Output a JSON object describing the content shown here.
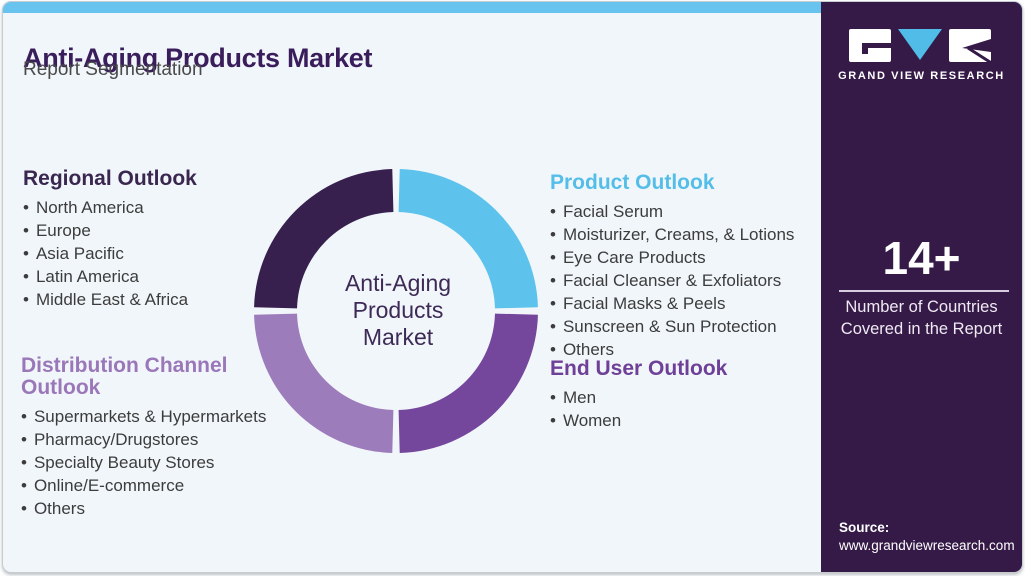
{
  "header": {
    "title": "Anti-Aging Products Market",
    "subtitle": "Report Segmentation"
  },
  "sections": [
    {
      "title": "Regional Outlook",
      "color": "#3a2750",
      "items": [
        "North America",
        "Europe",
        "Asia Pacific",
        "Latin America",
        "Middle East & Africa"
      ]
    },
    {
      "title": "Distribution Channel Outlook",
      "color": "#9a77b9",
      "items": [
        "Supermarkets & Hypermarkets",
        "Pharmacy/Drugstores",
        "Specialty Beauty Stores",
        "Online/E-commerce",
        "Others"
      ]
    },
    {
      "title": "Product Outlook",
      "color": "#54bee9",
      "items": [
        "Facial Serum",
        "Moisturizer, Creams, & Lotions",
        "Eye Care Products",
        "Facial Cleanser & Exfoliators",
        "Facial Masks & Peels",
        "Sunscreen & Sun Protection",
        "Others"
      ]
    },
    {
      "title": "End User Outlook",
      "color": "#6e4097",
      "items": [
        "Men",
        "Women"
      ]
    }
  ],
  "chart_data": {
    "type": "pie",
    "subtype": "donut",
    "title": "Anti-Aging Products Market",
    "center_label_lines": [
      "Anti-Aging",
      "Products",
      "Market"
    ],
    "segments": [
      {
        "name": "Product Outlook",
        "value": 25,
        "color": "#5ec3ec"
      },
      {
        "name": "End User Outlook",
        "value": 25,
        "color": "#74479c"
      },
      {
        "name": "Distribution Channel Outlook",
        "value": 25,
        "color": "#9d7cbb"
      },
      {
        "name": "Regional Outlook",
        "value": 25,
        "color": "#371f4e"
      }
    ],
    "start_angle_deg": 0,
    "gap_deg": 3,
    "legend": "none"
  },
  "sidebar": {
    "brand": "GRAND VIEW RESEARCH",
    "stat": {
      "value": "14+",
      "label_lines": [
        "Number of Countries",
        "Covered in the Report"
      ]
    },
    "source_label": "Source:",
    "source_url": "www.grandviewresearch.com"
  },
  "colors": {
    "accent_blue": "#68c3ee",
    "sidebar_bg": "#351a47",
    "card_bg": "#f1f6fa",
    "title_purple": "#3a1d5b",
    "body_text": "#3c3c3c"
  }
}
